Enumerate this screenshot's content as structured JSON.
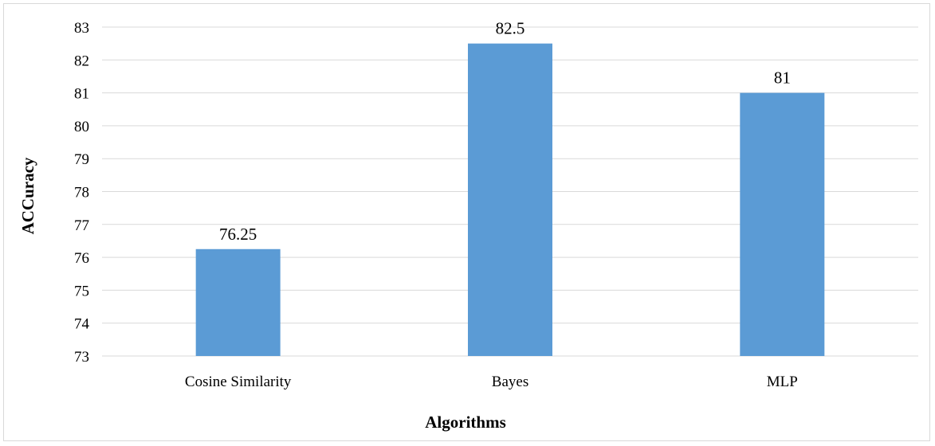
{
  "chart_data": {
    "type": "bar",
    "title": "",
    "xlabel": "Algorithms",
    "ylabel": "ACCuracy",
    "categories": [
      "Cosine Similarity",
      "Bayes",
      "MLP"
    ],
    "values": [
      76.25,
      82.5,
      81
    ],
    "data_labels": [
      "76.25",
      "82.5",
      "81"
    ],
    "ylim": [
      73,
      83
    ],
    "yticks": [
      73,
      74,
      75,
      76,
      77,
      78,
      79,
      80,
      81,
      82,
      83
    ],
    "grid": true,
    "legend": "none",
    "bar_color": "#5b9bd5",
    "grid_color": "#d9d9d9"
  }
}
